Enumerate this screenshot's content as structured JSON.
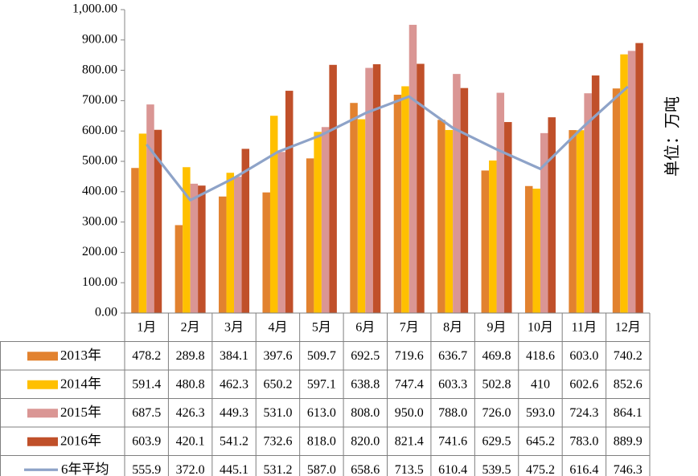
{
  "chart_data": {
    "type": "bar",
    "categories": [
      "1月",
      "2月",
      "3月",
      "4月",
      "5月",
      "6月",
      "7月",
      "8月",
      "9月",
      "10月",
      "11月",
      "12月"
    ],
    "series": [
      {
        "name": "2013年",
        "type": "bar",
        "color": "#E2822F",
        "values": [
          478.2,
          289.8,
          384.1,
          397.6,
          509.7,
          692.5,
          719.6,
          636.7,
          469.8,
          418.6,
          603.0,
          740.2
        ],
        "labels": [
          "478.2",
          "289.8",
          "384.1",
          "397.6",
          "509.7",
          "692.5",
          "719.6",
          "636.7",
          "469.8",
          "418.6",
          "603.0",
          "740.2"
        ]
      },
      {
        "name": "2014年",
        "type": "bar",
        "color": "#FFC000",
        "values": [
          591.4,
          480.8,
          462.3,
          650.2,
          597.1,
          638.8,
          747.4,
          603.3,
          502.8,
          410,
          602.6,
          852.6
        ],
        "labels": [
          "591.4",
          "480.8",
          "462.3",
          "650.2",
          "597.1",
          "638.8",
          "747.4",
          "603.3",
          "502.8",
          "410",
          "602.6",
          "852.6"
        ]
      },
      {
        "name": "2015年",
        "type": "bar",
        "color": "#DA9694",
        "values": [
          687.5,
          426.3,
          449.3,
          531.0,
          613.0,
          808.0,
          950.0,
          788.0,
          726.0,
          593.0,
          724.3,
          864.1
        ],
        "labels": [
          "687.5",
          "426.3",
          "449.3",
          "531.0",
          "613.0",
          "808.0",
          "950.0",
          "788.0",
          "726.0",
          "593.0",
          "724.3",
          "864.1"
        ]
      },
      {
        "name": "2016年",
        "type": "bar",
        "color": "#C0502A",
        "values": [
          603.9,
          420.1,
          541.2,
          732.6,
          818.0,
          820.0,
          821.4,
          741.6,
          629.5,
          645.2,
          783.0,
          889.9
        ],
        "labels": [
          "603.9",
          "420.1",
          "541.2",
          "732.6",
          "818.0",
          "820.0",
          "821.4",
          "741.6",
          "629.5",
          "645.2",
          "783.0",
          "889.9"
        ]
      },
      {
        "name": "6年平均",
        "type": "line",
        "color": "#8EA3C8",
        "values": [
          555.9,
          372.0,
          445.1,
          531.2,
          587.0,
          658.6,
          713.5,
          610.4,
          539.5,
          475.2,
          616.4,
          746.3
        ],
        "labels": [
          "555.9",
          "372.0",
          "445.1",
          "531.2",
          "587.0",
          "658.6",
          "713.5",
          "610.4",
          "539.5",
          "475.2",
          "616.4",
          "746.3"
        ]
      }
    ],
    "yticks": [
      "0.00",
      "100.00",
      "200.00",
      "300.00",
      "400.00",
      "500.00",
      "600.00",
      "700.00",
      "800.00",
      "900.00",
      "1,000.00"
    ],
    "ylim": [
      0,
      1000
    ],
    "ylabel": "单位：万吨",
    "grid": false,
    "legend": "data-table"
  }
}
